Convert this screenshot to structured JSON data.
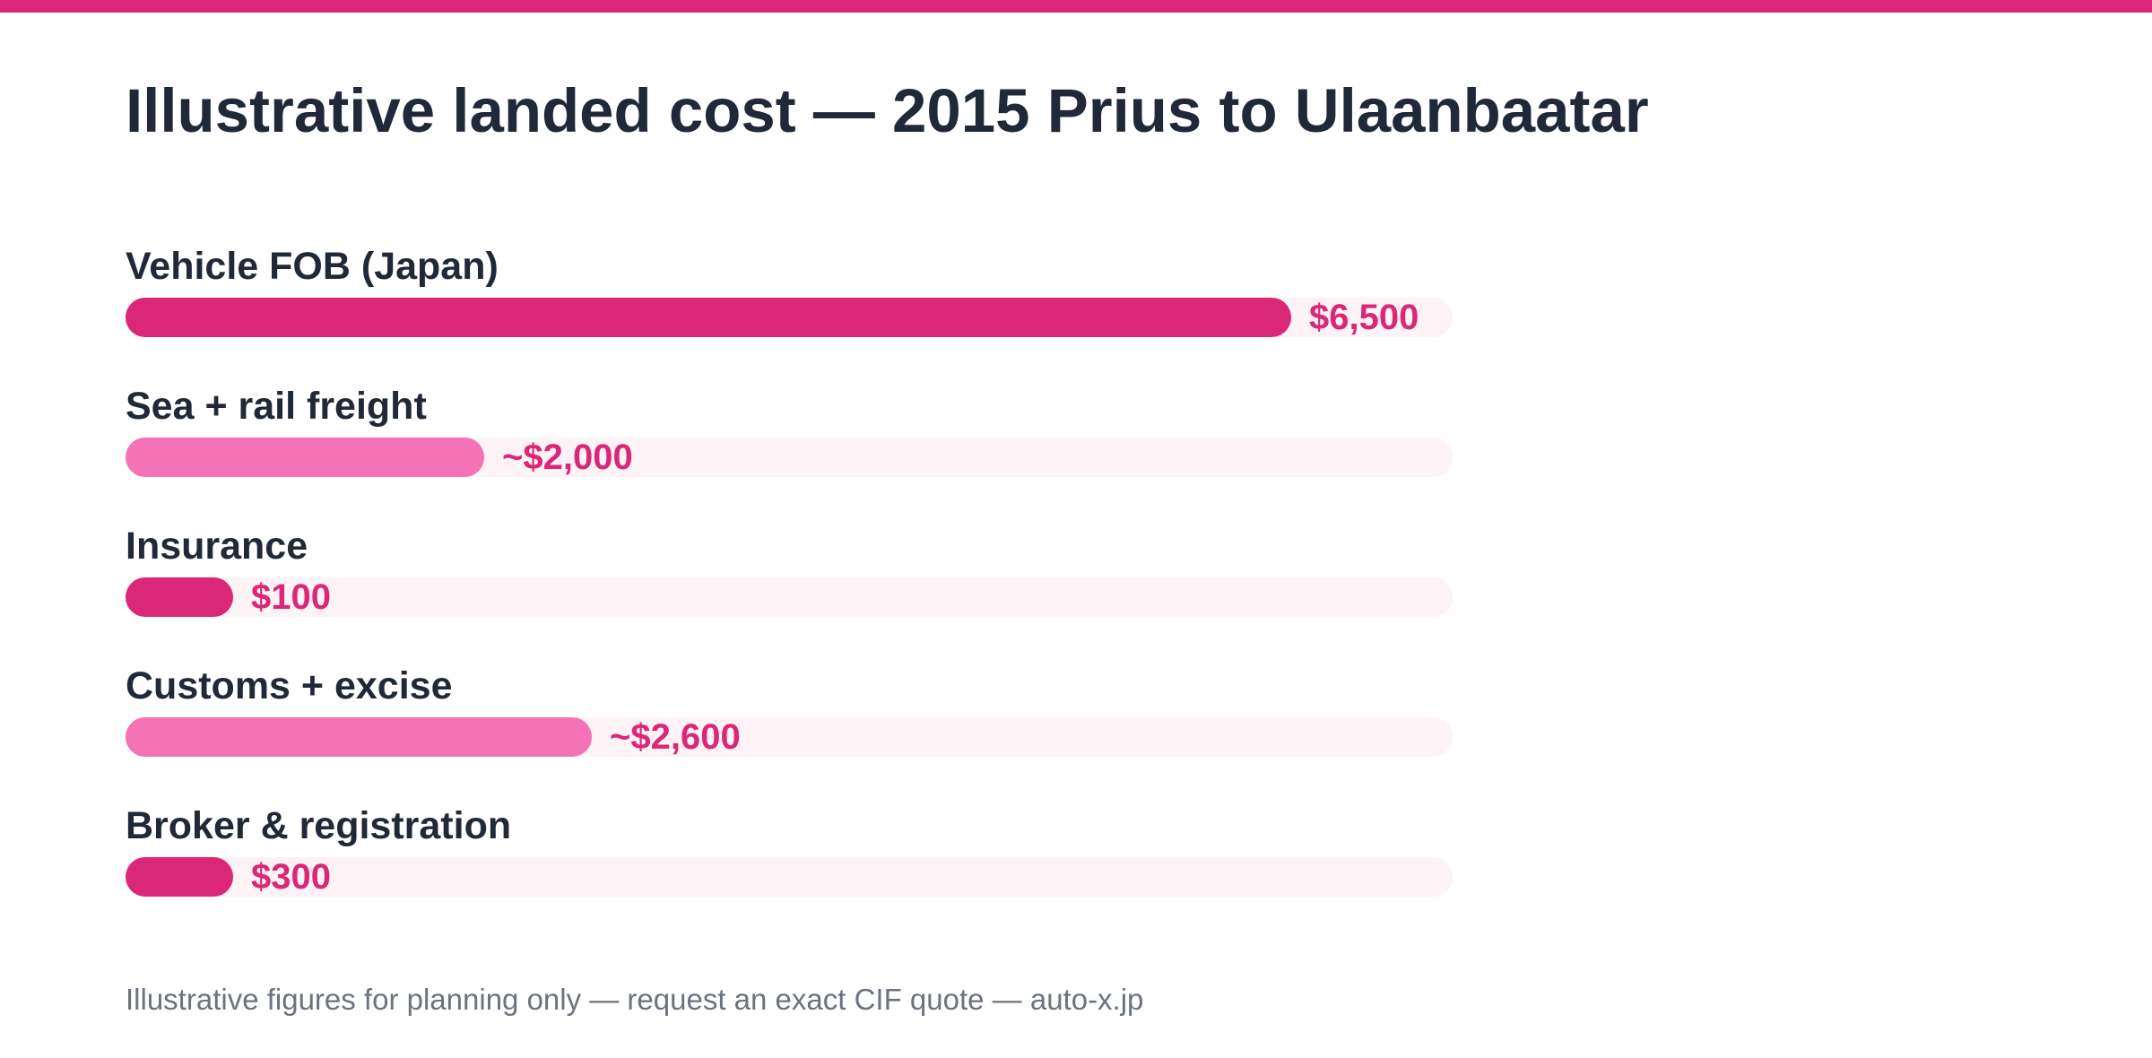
{
  "title": "Illustrative landed cost — 2015 Prius to Ulaanbaatar",
  "footnote": "Illustrative figures for planning only — request an exact CIF quote — auto-x.jp",
  "colors": {
    "accent": "#db2777",
    "accent_light": "#f472b6",
    "track": "#fdf2f6",
    "text_dark": "#1f2937",
    "text_muted": "#6b7280"
  },
  "chart_data": {
    "type": "bar",
    "orientation": "horizontal",
    "title": "Illustrative landed cost — 2015 Prius to Ulaanbaatar",
    "xlim": [
      0,
      7400
    ],
    "categories": [
      "Vehicle FOB (Japan)",
      "Sea + rail freight",
      "Insurance",
      "Customs + excise",
      "Broker & registration"
    ],
    "values": [
      6500,
      2000,
      100,
      2600,
      300
    ],
    "value_labels": [
      "$6,500",
      "~$2,000",
      "$100",
      "~$2,600",
      "$300"
    ],
    "approximate": [
      false,
      true,
      false,
      true,
      false
    ],
    "bar_colors": [
      "#db2777",
      "#f472b6",
      "#db2777",
      "#f472b6",
      "#db2777"
    ]
  }
}
